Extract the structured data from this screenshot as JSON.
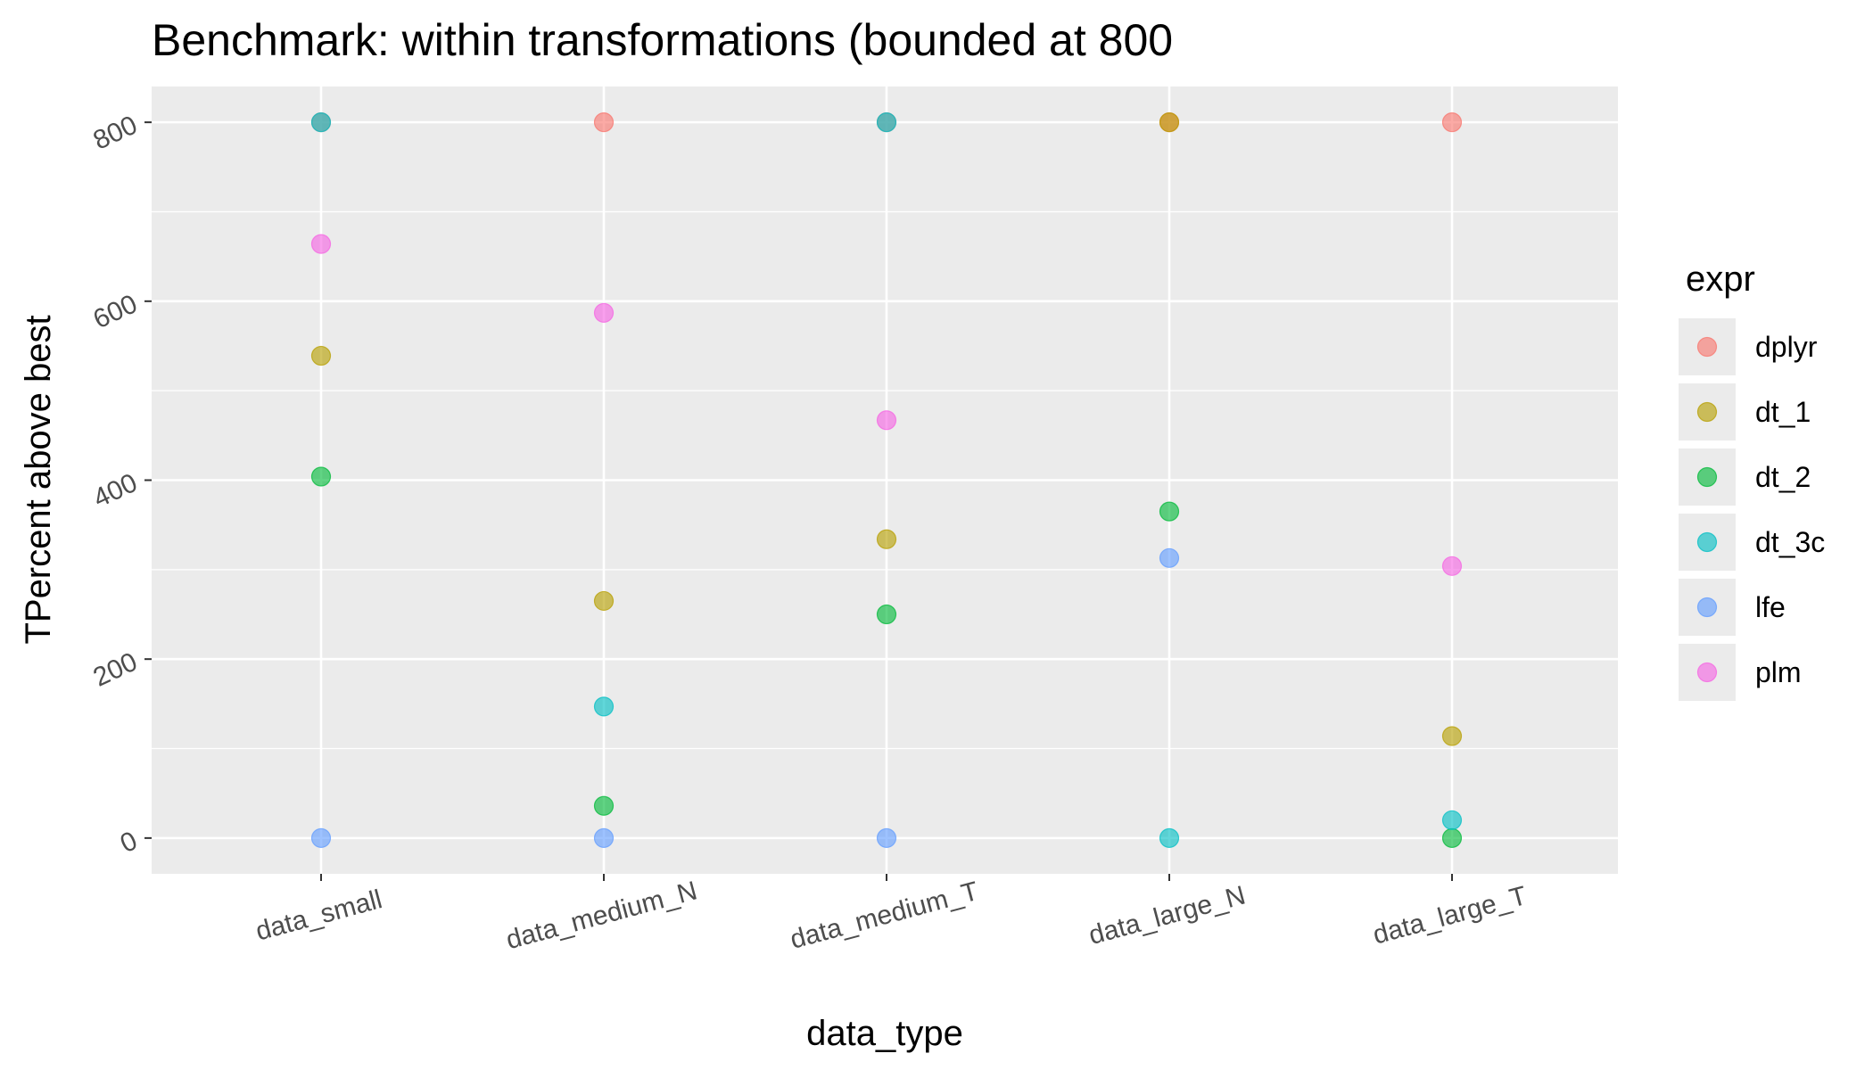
{
  "chart_data": {
    "type": "scatter",
    "title": "Benchmark: within transformations (bounded at 800",
    "xlabel": "data_type",
    "ylabel": "TPercent above best",
    "categories": [
      "data_small",
      "data_medium_N",
      "data_medium_T",
      "data_large_N",
      "data_large_T"
    ],
    "y_ticks": [
      "0",
      "200",
      "400",
      "600",
      "800"
    ],
    "ylim": [
      -40,
      840
    ],
    "grid": true,
    "legend": {
      "title": "expr",
      "position": "right"
    },
    "series": [
      {
        "name": "dplyr",
        "color": "#F8766D",
        "values": [
          800,
          800,
          800,
          800,
          800
        ]
      },
      {
        "name": "dt_1",
        "color": "#B79F00",
        "values": [
          539,
          265,
          334,
          800,
          114
        ]
      },
      {
        "name": "dt_2",
        "color": "#00BA38",
        "values": [
          404,
          36,
          250,
          365,
          0
        ]
      },
      {
        "name": "dt_3c",
        "color": "#00BFC4",
        "values": [
          800,
          147,
          800,
          0,
          20
        ]
      },
      {
        "name": "lfe",
        "color": "#619CFF",
        "values": [
          0,
          0,
          0,
          313,
          null
        ]
      },
      {
        "name": "plm",
        "color": "#F564E3",
        "values": [
          664,
          587,
          467,
          null,
          304
        ]
      }
    ]
  }
}
